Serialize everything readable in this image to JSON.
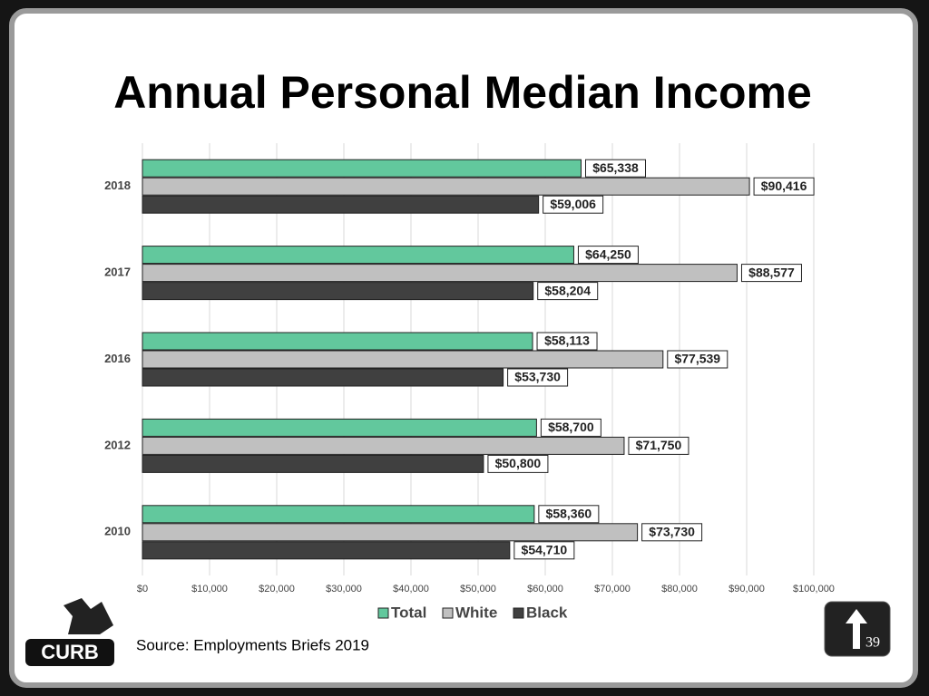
{
  "chart_data": {
    "type": "hbar",
    "title": "Annual Personal Median Income",
    "categories": [
      "2018",
      "2017",
      "2016",
      "2012",
      "2010"
    ],
    "series": [
      {
        "name": "Total",
        "color": "#62c89d",
        "values": [
          65338,
          64250,
          58113,
          58700,
          58360
        ],
        "value_labels": [
          "$65,338",
          "$64,250",
          "$58,113",
          "$58,700",
          "$58,360"
        ]
      },
      {
        "name": "White",
        "color": "#c0c0c0",
        "values": [
          90416,
          88577,
          77539,
          71750,
          73730
        ],
        "value_labels": [
          "$90,416",
          "$88,577",
          "$77,539",
          "$71,750",
          "$73,730"
        ]
      },
      {
        "name": "Black",
        "color": "#404040",
        "values": [
          59006,
          58204,
          53730,
          50800,
          54710
        ],
        "value_labels": [
          "$59,006",
          "$58,204",
          "$53,730",
          "$50,800",
          "$54,710"
        ]
      }
    ],
    "xlim": [
      0,
      100000
    ],
    "xticks": [
      {
        "value": 0,
        "label": "$0"
      },
      {
        "value": 10000,
        "label": "$10,000"
      },
      {
        "value": 20000,
        "label": "$20,000"
      },
      {
        "value": 30000,
        "label": "$30,000"
      },
      {
        "value": 40000,
        "label": "$40,000"
      },
      {
        "value": 50000,
        "label": "$50,000"
      },
      {
        "value": 60000,
        "label": "$60,000"
      },
      {
        "value": 70000,
        "label": "$70,000"
      },
      {
        "value": 80000,
        "label": "$80,000"
      },
      {
        "value": 90000,
        "label": "$90,000"
      },
      {
        "value": 100000,
        "label": "$100,000"
      }
    ],
    "grid": true,
    "legend": "bottom"
  },
  "source": "Source: Employments Briefs 2019",
  "page_number": 39,
  "logo": "CURB"
}
